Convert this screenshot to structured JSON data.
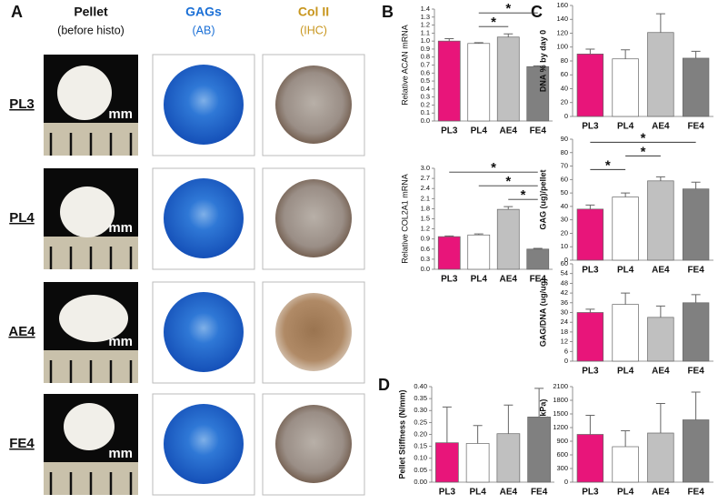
{
  "panel_labels": {
    "a": "A",
    "b": "B",
    "c": "C",
    "d": "D"
  },
  "panel_a": {
    "columns": [
      {
        "title": "Pellet",
        "subtitle": "(before histo)"
      },
      {
        "title": "GAGs",
        "subtitle": "(AB)"
      },
      {
        "title": "Col II",
        "subtitle": "(IHC)"
      }
    ],
    "rows": [
      "PL3",
      "PL4",
      "AE4",
      "FE4"
    ],
    "scale_label": "mm"
  },
  "chart_data": [
    {
      "type": "bar",
      "ylabel": "Relative ACAN mRNA",
      "categories": [
        "PL3",
        "PL4",
        "AE4",
        "FE4"
      ],
      "values": [
        1.0,
        0.97,
        1.05,
        0.68
      ],
      "errors": [
        0.03,
        0.01,
        0.04,
        0.01
      ],
      "colors": [
        "#e8157a",
        "#ffffff",
        "#c0c0c0",
        "#808080"
      ],
      "ylim": [
        0,
        1.4
      ],
      "yticks": [
        {
          "value": 0,
          "label": "0.0"
        },
        0.1,
        0.2,
        0.3,
        0.4,
        0.5,
        0.6,
        0.7,
        0.8,
        0.9,
        {
          "value": 1,
          "label": "1.0"
        },
        1.1,
        1.2,
        1.3,
        1.4
      ],
      "significance": [
        {
          "from": "PL4",
          "to": "AE4",
          "label": "*"
        },
        {
          "from": "PL4",
          "to": "FE4",
          "label": "*"
        }
      ]
    },
    {
      "type": "bar",
      "ylabel": "Relative COL2A1 mRNA",
      "categories": [
        "PL3",
        "PL4",
        "AE4",
        "FE4"
      ],
      "values": [
        0.97,
        1.02,
        1.78,
        0.6
      ],
      "errors": [
        0.02,
        0.03,
        0.08,
        0.02
      ],
      "colors": [
        "#e8157a",
        "#ffffff",
        "#c0c0c0",
        "#808080"
      ],
      "ylim": [
        0,
        3
      ],
      "yticks": [
        {
          "value": 0,
          "label": "0.0"
        },
        0.3,
        0.6,
        0.9,
        1.2,
        1.5,
        1.8,
        2.1,
        2.4,
        2.7,
        {
          "value": 3,
          "label": "3.0"
        }
      ],
      "significance": [
        {
          "from": "AE4",
          "to": "FE4",
          "label": "*"
        },
        {
          "from": "PL4",
          "to": "FE4",
          "label": "*"
        },
        {
          "from": "PL3",
          "to": "FE4",
          "label": "*"
        }
      ]
    },
    {
      "type": "bar",
      "ylabel": "DNA % by day 0",
      "categories": [
        "PL3",
        "PL4",
        "AE4",
        "FE4"
      ],
      "values": [
        90,
        83,
        121,
        84
      ],
      "errors": [
        7,
        13,
        27,
        10
      ],
      "colors": [
        "#e8157a",
        "#ffffff",
        "#c0c0c0",
        "#808080"
      ],
      "ylim": [
        0,
        160
      ],
      "yticks": [
        0,
        20,
        40,
        60,
        80,
        100,
        120,
        140,
        160
      ],
      "significance": []
    },
    {
      "type": "bar",
      "ylabel": "GAG (ug)/pellet",
      "categories": [
        "PL3",
        "PL4",
        "AE4",
        "FE4"
      ],
      "values": [
        38,
        47,
        59,
        53
      ],
      "errors": [
        3,
        3,
        3,
        5
      ],
      "colors": [
        "#e8157a",
        "#ffffff",
        "#c0c0c0",
        "#808080"
      ],
      "ylim": [
        0,
        90
      ],
      "yticks": [
        0,
        10,
        20,
        30,
        40,
        50,
        60,
        70,
        80,
        90
      ],
      "significance": [
        {
          "from": "PL3",
          "to": "PL4",
          "label": "*"
        },
        {
          "from": "PL4",
          "to": "AE4",
          "label": "*"
        },
        {
          "from": "PL3",
          "to": "FE4",
          "label": "*"
        }
      ]
    },
    {
      "type": "bar",
      "ylabel": "GAG/DNA (ug/ug)",
      "categories": [
        "PL3",
        "PL4",
        "AE4",
        "FE4"
      ],
      "values": [
        30,
        35,
        27,
        36
      ],
      "errors": [
        2,
        7,
        7,
        5
      ],
      "colors": [
        "#e8157a",
        "#ffffff",
        "#c0c0c0",
        "#808080"
      ],
      "ylim": [
        0,
        60
      ],
      "yticks": [
        0,
        6,
        12,
        18,
        24,
        30,
        36,
        42,
        48,
        54,
        60
      ],
      "significance": []
    },
    {
      "type": "bar",
      "ylabel": "Pellet YMOD (kPa)",
      "categories": [
        "PL3",
        "PL4",
        "AE4",
        "FE4"
      ],
      "values": [
        1050,
        780,
        1080,
        1370
      ],
      "errors": [
        420,
        350,
        650,
        610
      ],
      "colors": [
        "#e8157a",
        "#ffffff",
        "#c0c0c0",
        "#808080"
      ],
      "ylim": [
        0,
        2100
      ],
      "yticks": [
        0,
        300,
        600,
        900,
        1200,
        1500,
        1800,
        2100
      ],
      "significance": []
    },
    {
      "type": "bar",
      "ylabel": "Pellet Stiffness (N/mm)",
      "categories": [
        "PL3",
        "PL4",
        "AE4",
        "FE4"
      ],
      "values": [
        0.165,
        0.162,
        0.203,
        0.273
      ],
      "errors": [
        0.15,
        0.075,
        0.12,
        0.12
      ],
      "colors": [
        "#e8157a",
        "#ffffff",
        "#c0c0c0",
        "#808080"
      ],
      "ylim": [
        0,
        0.4
      ],
      "yticks": [
        {
          "value": 0,
          "label": "0.00"
        },
        0.05,
        {
          "value": 0.1,
          "label": "0.10"
        },
        0.15,
        {
          "value": 0.2,
          "label": "0.20"
        },
        0.25,
        {
          "value": 0.3,
          "label": "0.30"
        },
        0.35,
        {
          "value": 0.4,
          "label": "0.40"
        }
      ],
      "significance": []
    }
  ]
}
